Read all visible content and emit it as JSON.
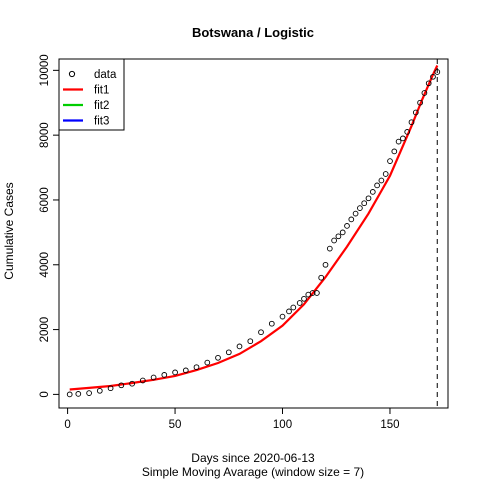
{
  "chart_data": {
    "type": "scatter",
    "title": "Botswana / Logistic",
    "xlabel": "Days since 2020-06-13",
    "xlabel2": "Simple Moving Avarage (window size = 7)",
    "ylabel": "Cumulative Cases",
    "xlim": [
      -4,
      177
    ],
    "ylim": [
      -420,
      10350
    ],
    "x_ticks": [
      0,
      50,
      100,
      150
    ],
    "y_ticks": [
      0,
      2000,
      4000,
      6000,
      8000,
      10000
    ],
    "vline_x": 172,
    "legend": {
      "position": "top-left",
      "entries": [
        {
          "label": "data",
          "symbol": "circle",
          "color": "#000000"
        },
        {
          "label": "fit1",
          "symbol": "line",
          "color": "#ff0000"
        },
        {
          "label": "fit2",
          "symbol": "line",
          "color": "#00cd00"
        },
        {
          "label": "fit3",
          "symbol": "line",
          "color": "#0000ff"
        }
      ]
    },
    "data_series": {
      "name": "data",
      "x": [
        1,
        5,
        10,
        15,
        20,
        25,
        30,
        35,
        40,
        45,
        50,
        55,
        60,
        65,
        70,
        75,
        80,
        85,
        90,
        95,
        100,
        103,
        105,
        108,
        110,
        112,
        114,
        116,
        118,
        120,
        122,
        124,
        126,
        128,
        130,
        132,
        134,
        136,
        138,
        140,
        142,
        144,
        146,
        148,
        150,
        152,
        154,
        156,
        158,
        160,
        162,
        164,
        166,
        168,
        170,
        172
      ],
      "y": [
        0,
        15,
        40,
        110,
        190,
        280,
        330,
        430,
        520,
        600,
        680,
        740,
        840,
        980,
        1130,
        1300,
        1480,
        1640,
        1920,
        2180,
        2400,
        2560,
        2680,
        2820,
        2950,
        3080,
        3130,
        3130,
        3600,
        4000,
        4500,
        4750,
        4880,
        5000,
        5200,
        5400,
        5580,
        5750,
        5900,
        6050,
        6250,
        6450,
        6600,
        6800,
        7200,
        7500,
        7800,
        7900,
        8100,
        8400,
        8700,
        9000,
        9300,
        9600,
        9800,
        9950
      ]
    },
    "fit1": {
      "name": "fit1",
      "x": [
        1,
        10,
        20,
        30,
        40,
        50,
        60,
        70,
        80,
        90,
        100,
        110,
        120,
        130,
        140,
        150,
        160,
        165,
        170,
        172
      ],
      "y": [
        150,
        200,
        260,
        350,
        450,
        570,
        750,
        970,
        1250,
        1640,
        2120,
        2780,
        3620,
        4560,
        5580,
        6750,
        8280,
        9100,
        9870,
        10150
      ]
    }
  }
}
